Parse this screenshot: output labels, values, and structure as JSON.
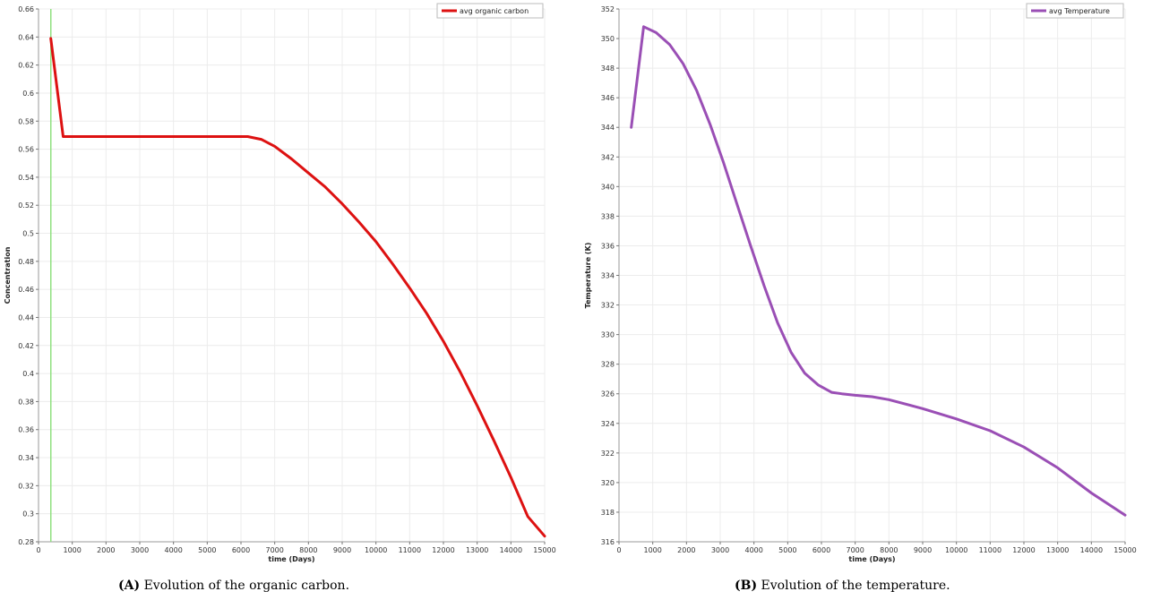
{
  "captions": [
    {
      "tag": "(A)",
      "text": "Evolution of the organic carbon."
    },
    {
      "tag": "(B)",
      "text": "Evolution of the temperature."
    }
  ],
  "chart_data": [
    {
      "type": "line",
      "xlabel": "time (Days)",
      "ylabel": "Concentration",
      "xlim": [
        0,
        15000
      ],
      "ylim": [
        0.28,
        0.66
      ],
      "xticks": [
        0,
        1000,
        2000,
        3000,
        4000,
        5000,
        6000,
        7000,
        8000,
        9000,
        10000,
        11000,
        12000,
        13000,
        14000,
        15000
      ],
      "yticks": [
        0.28,
        0.3,
        0.32,
        0.34,
        0.36,
        0.38,
        0.4,
        0.42,
        0.44,
        0.46,
        0.48,
        0.5,
        0.52,
        0.54,
        0.56,
        0.58,
        0.6,
        0.62,
        0.64,
        0.66
      ],
      "grid": true,
      "legend_position": "top-right",
      "marker_line": {
        "x": 365,
        "color": "#90e080"
      },
      "series": [
        {
          "name": "avg organic carbon",
          "color": "#dd1111",
          "x": [
            365,
            730,
            1000,
            2000,
            3000,
            4000,
            5000,
            6000,
            6200,
            6600,
            7000,
            7500,
            8000,
            8500,
            9000,
            9500,
            10000,
            10500,
            11000,
            11500,
            12000,
            12500,
            13000,
            13500,
            14000,
            14500,
            15000
          ],
          "y": [
            0.639,
            0.569,
            0.569,
            0.569,
            0.569,
            0.569,
            0.569,
            0.569,
            0.569,
            0.567,
            0.562,
            0.553,
            0.543,
            0.533,
            0.521,
            0.508,
            0.494,
            0.478,
            0.461,
            0.443,
            0.423,
            0.401,
            0.377,
            0.352,
            0.326,
            0.298,
            0.284
          ]
        }
      ]
    },
    {
      "type": "line",
      "xlabel": "time (Days)",
      "ylabel": "Temperature (K)",
      "xlim": [
        0,
        15000
      ],
      "ylim": [
        316,
        352
      ],
      "xticks": [
        0,
        1000,
        2000,
        3000,
        4000,
        5000,
        6000,
        7000,
        8000,
        9000,
        10000,
        11000,
        12000,
        13000,
        14000,
        15000
      ],
      "yticks": [
        316,
        318,
        320,
        322,
        324,
        326,
        328,
        330,
        332,
        334,
        336,
        338,
        340,
        342,
        344,
        346,
        348,
        350,
        352
      ],
      "grid": true,
      "legend_position": "top-right",
      "series": [
        {
          "name": "avg Temperature",
          "color": "#9a4fb5",
          "x": [
            365,
            730,
            1100,
            1500,
            1900,
            2300,
            2700,
            3100,
            3500,
            3900,
            4300,
            4700,
            5100,
            5500,
            5900,
            6300,
            6600,
            7000,
            7500,
            8000,
            9000,
            10000,
            11000,
            12000,
            13000,
            14000,
            15000
          ],
          "y": [
            344.0,
            350.8,
            350.4,
            349.6,
            348.3,
            346.5,
            344.2,
            341.6,
            338.8,
            336.0,
            333.3,
            330.8,
            328.8,
            327.4,
            326.6,
            326.1,
            326.0,
            325.9,
            325.8,
            325.6,
            325.0,
            324.3,
            323.5,
            322.4,
            321.0,
            319.3,
            317.8
          ]
        }
      ]
    }
  ]
}
